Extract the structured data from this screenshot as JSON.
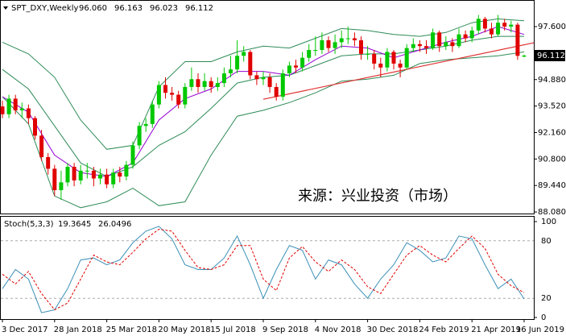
{
  "chart_data": [
    {
      "type": "candlestick",
      "title": "SPT_DXY,Weekly",
      "ohlc_labels": [
        "96.060",
        "96.163",
        "96.023",
        "96.112"
      ],
      "categories": [
        "3 Dec 2017",
        null,
        null,
        null,
        null,
        null,
        null,
        null,
        "28 Jan 2018",
        null,
        null,
        null,
        null,
        null,
        null,
        null,
        "25 Mar 2018",
        null,
        null,
        null,
        null,
        null,
        null,
        null,
        "20 May 2018",
        null,
        null,
        null,
        null,
        null,
        null,
        null,
        "15 Jul 2018",
        null,
        null,
        null,
        null,
        null,
        null,
        null,
        "9 Sep 2018",
        null,
        null,
        null,
        null,
        null,
        null,
        null,
        "4 Nov 2018",
        null,
        null,
        null,
        null,
        null,
        null,
        null,
        "30 Dec 2018",
        null,
        null,
        null,
        null,
        null,
        null,
        null,
        "24 Feb 2019",
        null,
        null,
        null,
        null,
        null,
        null,
        null,
        "21 Apr 2019",
        null,
        null,
        null,
        null,
        null,
        null,
        null,
        "16 Jun 2019"
      ],
      "open": [
        93.5,
        93.1,
        93.9,
        93.3,
        93.4,
        92.9,
        92.0,
        90.9,
        90.3,
        89.2,
        89.6,
        90.4,
        89.7,
        90.2,
        90.2,
        89.8,
        90.0,
        89.5,
        90.1,
        89.9,
        90.5,
        91.5,
        92.5,
        92.6,
        93.6,
        94.6,
        94.2,
        94.1,
        93.6,
        94.5,
        94.9,
        94.5,
        94.8,
        94.5,
        94.7,
        95.2,
        95.4,
        96.1,
        96.3,
        95.1,
        94.9,
        95.0,
        94.5,
        94.0,
        95.2,
        95.6,
        95.5,
        96.0,
        96.4,
        96.4,
        96.9,
        96.5,
        96.8,
        97.0,
        97.0,
        96.9,
        96.2,
        96.2,
        95.7,
        95.5,
        96.3,
        95.7,
        95.5,
        96.5,
        96.7,
        96.6,
        96.5,
        97.3,
        96.6,
        96.8,
        96.6,
        97.2,
        97.0,
        97.4,
        98.0,
        97.5,
        97.2,
        97.8,
        97.6,
        97.7,
        96.06
      ],
      "high": [
        93.8,
        94.1,
        94.1,
        93.7,
        93.6,
        93.0,
        92.3,
        91.1,
        90.5,
        90.2,
        90.6,
        90.6,
        90.5,
        90.6,
        90.4,
        90.3,
        90.3,
        90.3,
        90.4,
        90.7,
        91.7,
        92.7,
        92.9,
        93.8,
        94.8,
        95.0,
        94.5,
        94.3,
        94.7,
        95.5,
        95.2,
        95.2,
        95.0,
        95.0,
        95.5,
        96.1,
        96.9,
        96.6,
        96.4,
        95.3,
        95.3,
        95.2,
        94.7,
        95.4,
        95.8,
        95.9,
        96.3,
        96.7,
        97.1,
        97.3,
        97.1,
        97.2,
        97.4,
        97.6,
        97.3,
        97.1,
        96.6,
        96.4,
        96.0,
        96.5,
        96.4,
        95.9,
        96.7,
        97.0,
        96.9,
        96.9,
        97.5,
        97.4,
        97.1,
        97.0,
        97.5,
        97.4,
        97.6,
        98.2,
        98.1,
        97.8,
        98.2,
        98.0,
        97.9,
        97.8,
        96.163
      ],
      "low": [
        92.9,
        92.9,
        93.1,
        92.9,
        92.6,
        91.8,
        90.7,
        90.0,
        88.9,
        88.7,
        89.4,
        89.4,
        89.5,
        89.8,
        89.4,
        89.5,
        89.3,
        89.3,
        89.6,
        89.7,
        90.3,
        91.3,
        92.2,
        92.4,
        93.4,
        93.9,
        93.8,
        93.4,
        93.4,
        94.3,
        94.2,
        94.3,
        94.2,
        94.3,
        94.5,
        95.0,
        95.2,
        95.8,
        94.9,
        94.6,
        94.6,
        94.2,
        93.8,
        93.8,
        95.0,
        95.2,
        95.3,
        95.8,
        96.1,
        96.2,
        96.3,
        96.2,
        96.5,
        96.7,
        96.6,
        95.9,
        95.9,
        95.4,
        95.0,
        95.3,
        95.4,
        95.0,
        95.4,
        96.3,
        96.3,
        96.2,
        96.4,
        96.3,
        96.4,
        96.3,
        96.5,
        96.8,
        96.8,
        97.2,
        97.3,
        97.0,
        97.1,
        97.4,
        97.3,
        95.9,
        96.023
      ],
      "close": [
        93.1,
        93.9,
        93.3,
        93.4,
        92.9,
        92.0,
        90.9,
        90.3,
        89.2,
        89.6,
        90.4,
        89.7,
        90.2,
        90.2,
        89.8,
        90.0,
        89.5,
        90.1,
        89.9,
        90.5,
        91.5,
        92.5,
        92.6,
        93.6,
        94.6,
        94.2,
        94.1,
        93.6,
        94.5,
        94.9,
        94.5,
        94.8,
        94.5,
        94.7,
        95.2,
        95.4,
        96.1,
        96.3,
        95.1,
        94.9,
        95.0,
        94.5,
        94.0,
        95.2,
        95.6,
        95.5,
        96.0,
        96.4,
        96.4,
        96.9,
        96.5,
        96.8,
        97.0,
        97.0,
        96.9,
        96.2,
        96.2,
        95.7,
        95.5,
        96.3,
        95.7,
        95.5,
        96.5,
        96.7,
        96.6,
        96.5,
        97.3,
        96.6,
        96.8,
        96.6,
        97.2,
        97.0,
        97.4,
        98.0,
        97.5,
        97.2,
        97.8,
        97.6,
        97.7,
        96.1,
        96.112
      ],
      "up_color": "#00c800",
      "down_color": "#e00000",
      "ylim": [
        88.0,
        98.76
      ],
      "yticks": [
        {
          "value": 97.6,
          "label": "97.600"
        },
        {
          "value": 94.88,
          "label": "94.880"
        },
        {
          "value": 93.52,
          "label": "93.520"
        },
        {
          "value": 92.16,
          "label": "92.160"
        },
        {
          "value": 90.8,
          "label": "90.800"
        },
        {
          "value": 89.44,
          "label": "89.440"
        },
        {
          "value": 88.08,
          "label": "88.080"
        }
      ],
      "price_marker": {
        "value": 96.112,
        "label": "96.112"
      },
      "bands": {
        "color": "#2e8b57",
        "x": [
          0,
          4,
          8,
          12,
          16,
          20,
          24,
          28,
          32,
          36,
          40,
          44,
          48,
          52,
          56,
          60,
          64,
          68,
          72,
          76,
          80
        ],
        "upper": [
          96.8,
          96.2,
          95.0,
          92.8,
          91.3,
          91.5,
          94.5,
          95.8,
          95.8,
          96.3,
          96.6,
          96.5,
          97.0,
          97.5,
          97.4,
          97.2,
          97.1,
          97.3,
          97.8,
          98.0,
          97.9
        ],
        "middle": [
          95.4,
          94.4,
          92.5,
          90.6,
          89.9,
          90.4,
          91.5,
          92.2,
          93.4,
          94.7,
          95.0,
          95.1,
          95.6,
          96.1,
          96.2,
          96.2,
          96.4,
          96.6,
          96.9,
          97.1,
          97.1
        ],
        "lower": [
          94.0,
          92.6,
          88.9,
          88.3,
          88.6,
          89.3,
          88.4,
          88.6,
          91.0,
          93.0,
          93.3,
          93.7,
          94.2,
          94.8,
          94.9,
          95.1,
          95.7,
          95.9,
          96.0,
          96.1,
          96.3
        ]
      },
      "ma": {
        "color": "#9400d3",
        "x": [
          0,
          4,
          8,
          12,
          16,
          20,
          24,
          28,
          32,
          36,
          40,
          44,
          48,
          52,
          56,
          60,
          64,
          68,
          72,
          76,
          80
        ],
        "values": [
          94.0,
          93.2,
          91.0,
          90.1,
          89.9,
          90.6,
          92.8,
          93.9,
          94.4,
          95.3,
          95.3,
          95.1,
          95.9,
          96.6,
          96.5,
          96.0,
          96.4,
          96.8,
          97.1,
          97.6,
          97.2
        ]
      },
      "trendline": {
        "color": "#e03030",
        "x": [
          40,
          81.5
        ],
        "values": [
          93.87,
          96.77
        ]
      },
      "annotation": "来源：兴业投资（市场）"
    },
    {
      "type": "stochastic",
      "title": "Stoch(5,3,3)",
      "value_labels": [
        "19.3645",
        "26.0496"
      ],
      "x": [
        0,
        2,
        4,
        6,
        8,
        10,
        12,
        14,
        16,
        18,
        20,
        22,
        24,
        26,
        28,
        30,
        32,
        34,
        36,
        38,
        40,
        42,
        44,
        46,
        48,
        50,
        52,
        54,
        56,
        58,
        60,
        62,
        64,
        66,
        68,
        70,
        72,
        74,
        76,
        78,
        80
      ],
      "series": [
        {
          "color": "#3a8fb7",
          "values": [
            30,
            50,
            40,
            5,
            8,
            30,
            60,
            62,
            55,
            60,
            78,
            90,
            95,
            82,
            55,
            50,
            50,
            62,
            85,
            55,
            20,
            50,
            75,
            70,
            40,
            60,
            55,
            35,
            20,
            40,
            55,
            78,
            70,
            58,
            62,
            85,
            82,
            55,
            30,
            40,
            19.3645
          ]
        },
        {
          "color": "#e00000",
          "dashed": true,
          "values": [
            45,
            35,
            48,
            25,
            8,
            15,
            40,
            65,
            58,
            55,
            68,
            82,
            92,
            90,
            70,
            52,
            50,
            55,
            75,
            75,
            40,
            28,
            62,
            74,
            58,
            48,
            60,
            50,
            32,
            25,
            45,
            65,
            75,
            65,
            58,
            72,
            85,
            72,
            45,
            33,
            26.0496
          ]
        }
      ],
      "ylim": [
        0,
        100
      ],
      "yticks": [
        0,
        20,
        80,
        100
      ]
    }
  ]
}
